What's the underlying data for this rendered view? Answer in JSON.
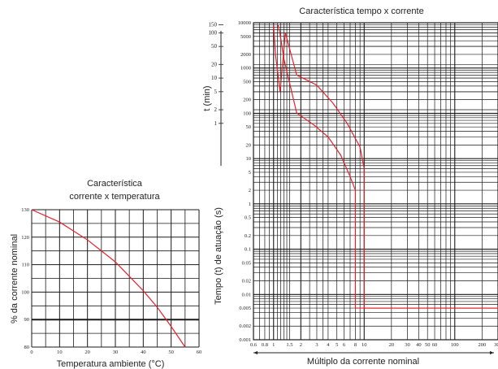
{
  "chart_data": [
    {
      "type": "line",
      "title": "Característica\ncorrente x temperatura",
      "xlabel": "Temperatura ambiente (°C)",
      "ylabel": "% da corrente nominal",
      "xlim": [
        0,
        60
      ],
      "ylim": [
        80,
        130
      ],
      "x_ticks": [
        "0",
        "10",
        "20",
        "30",
        "40",
        "50",
        "60"
      ],
      "y_ticks": [
        "80",
        "90",
        "100",
        "110",
        "120",
        "130"
      ],
      "grid": true,
      "series": [
        {
          "x": [
            0,
            10,
            20,
            30,
            40,
            45,
            50,
            55
          ],
          "y": [
            130,
            125.5,
            119,
            111,
            100.5,
            94.5,
            87.5,
            80
          ]
        }
      ],
      "colors": {
        "line": "#e8202a",
        "grid": "#1a1a1a"
      }
    },
    {
      "type": "line",
      "title": "Característica tempo x corrente",
      "xlabel": "Múltiplo da corrente nominal",
      "ylabel_minutes": "t (min)",
      "ylabel_seconds": "Tempo (t) de atuação (s)",
      "x_scale": "log",
      "xlim": [
        0.6,
        300
      ],
      "x_ticks": [
        "0.6",
        "0.8",
        "1",
        "1.5",
        "2",
        "3",
        "4",
        "5",
        "6",
        "8",
        "10",
        "20",
        "30",
        "40",
        "50",
        "60",
        "100",
        "200",
        "300"
      ],
      "y_ticks_minutes": [
        "1",
        "2",
        "5",
        "10",
        "20",
        "50",
        "100",
        "150"
      ],
      "y_ticks_minutes_right": [
        "10000",
        "5000",
        "2000",
        "1000",
        "500",
        "200",
        "100"
      ],
      "y_ticks_seconds": [
        "50",
        "20",
        "10",
        "5",
        "2",
        "1",
        "0.5",
        "0.2",
        "0.1",
        "0.05",
        "0.02",
        "0.01",
        "0.005",
        "0.002",
        "0.001"
      ],
      "grid": true,
      "series": [
        {
          "x": [
            1.12,
            1.18,
            1.3,
            1.8,
            2.8,
            4.0,
            5.5,
            7.0,
            8.0,
            8.0,
            300
          ],
          "y": [
            9000,
            5600,
            1600,
            102,
            55,
            30,
            12,
            4,
            2,
            0.005,
            0.005
          ]
        },
        {
          "x": [
            1.0,
            1.05,
            1.18,
            1.35,
            1.8,
            3.0,
            4.5,
            6.5,
            9.0,
            10.0,
            10.0,
            300
          ],
          "y": [
            9000,
            2000,
            300,
            6000,
            700,
            420,
            170,
            60,
            18,
            6,
            0.005,
            0.005
          ]
        }
      ],
      "colors": {
        "line": "#e8202a",
        "grid": "#1a1a1a"
      }
    }
  ]
}
